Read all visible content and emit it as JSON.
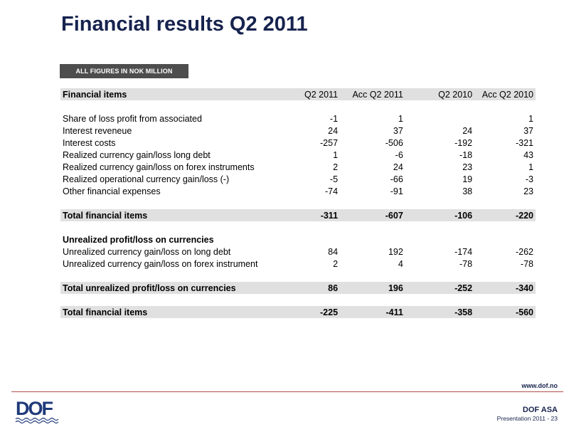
{
  "title": "Financial results Q2 2011",
  "badge": "ALL FIGURES IN NOK MILLION",
  "header": {
    "label": "Financial items",
    "cols": [
      "Q2 2011",
      "Acc Q2 2011",
      "Q2 2010",
      "Acc Q2 2010"
    ]
  },
  "rows": [
    {
      "label": "Share of loss profit from associated",
      "values": [
        "-1",
        "1",
        "",
        "1"
      ]
    },
    {
      "label": "Interest reveneue",
      "values": [
        "24",
        "37",
        "24",
        "37"
      ]
    },
    {
      "label": "Interest costs",
      "values": [
        "-257",
        "-506",
        "-192",
        "-321"
      ]
    },
    {
      "label": "Realized currency gain/loss long debt",
      "values": [
        "1",
        "-6",
        "-18",
        "43"
      ]
    },
    {
      "label": "Realized currency gain/loss on forex instruments",
      "values": [
        "2",
        "24",
        "23",
        "1"
      ]
    },
    {
      "label": "Realized operational  currency gain/loss (-)",
      "values": [
        "-5",
        "-66",
        "19",
        "-3"
      ]
    },
    {
      "label": "Other financial expenses",
      "values": [
        "-74",
        "-91",
        "38",
        "23"
      ]
    }
  ],
  "total1": {
    "label": "Total financial items",
    "values": [
      "-311",
      "-607",
      "-106",
      "-220"
    ]
  },
  "section": {
    "label": "Unrealized profit/loss on currencies"
  },
  "unrealized_rows": [
    {
      "label": "Unrealized currency gain/loss on long debt",
      "values": [
        "84",
        "192",
        "-174",
        "-262"
      ]
    },
    {
      "label": "Unrealized currency gain/loss on forex instrument",
      "values": [
        "2",
        "4",
        "-78",
        "-78"
      ]
    }
  ],
  "total2": {
    "label": "Total unrealized profit/loss on currencies",
    "values": [
      "86",
      "196",
      "-252",
      "-340"
    ]
  },
  "total3": {
    "label": "Total financial items",
    "values": [
      "-225",
      "-411",
      "-358",
      "-560"
    ]
  },
  "footer": {
    "url": "www.dof.no",
    "company": "DOF ASA",
    "presentation": "Presentation 2011 - 23",
    "logo_text": "DOF"
  },
  "colors": {
    "title": "#17234e",
    "badge": "#4d4d4d",
    "row_shade": "#e0e0e0",
    "rule": "#b05050"
  }
}
